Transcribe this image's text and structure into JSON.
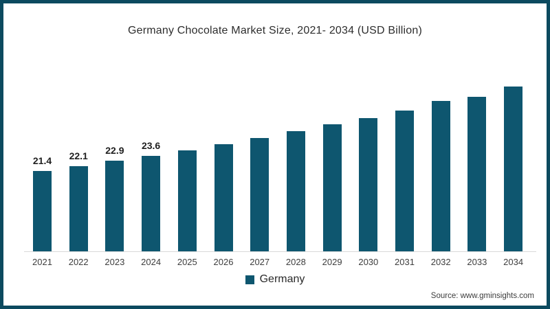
{
  "frame": {
    "border_color": "#0c4a5f",
    "background_color": "#ffffff"
  },
  "chart_data": {
    "type": "bar",
    "title": "Germany Chocolate Market Size, 2021- 2034 (USD Billion)",
    "categories": [
      "2021",
      "2022",
      "2023",
      "2024",
      "2025",
      "2026",
      "2027",
      "2028",
      "2029",
      "2030",
      "2031",
      "2032",
      "2033",
      "2034"
    ],
    "series": [
      {
        "name": "Germany",
        "color": "#0e566f",
        "values": [
          21.4,
          22.1,
          22.9,
          23.6,
          24.4,
          25.3,
          26.1,
          27.1,
          28.1,
          29.0,
          30.1,
          31.4,
          32.0,
          33.5
        ]
      }
    ],
    "value_labels": [
      "21.4",
      "22.1",
      "22.9",
      "23.6",
      "",
      "",
      "",
      "",
      "",
      "",
      "",
      "",
      "",
      ""
    ],
    "xlabel": "",
    "ylabel": "",
    "ylim": [
      10,
      37
    ],
    "grid": false,
    "axis_line_color": "#d9d9d9",
    "legend_position": "bottom"
  },
  "legend": {
    "label": "Germany"
  },
  "footer": {
    "source": "Source: www.gminsights.com"
  }
}
